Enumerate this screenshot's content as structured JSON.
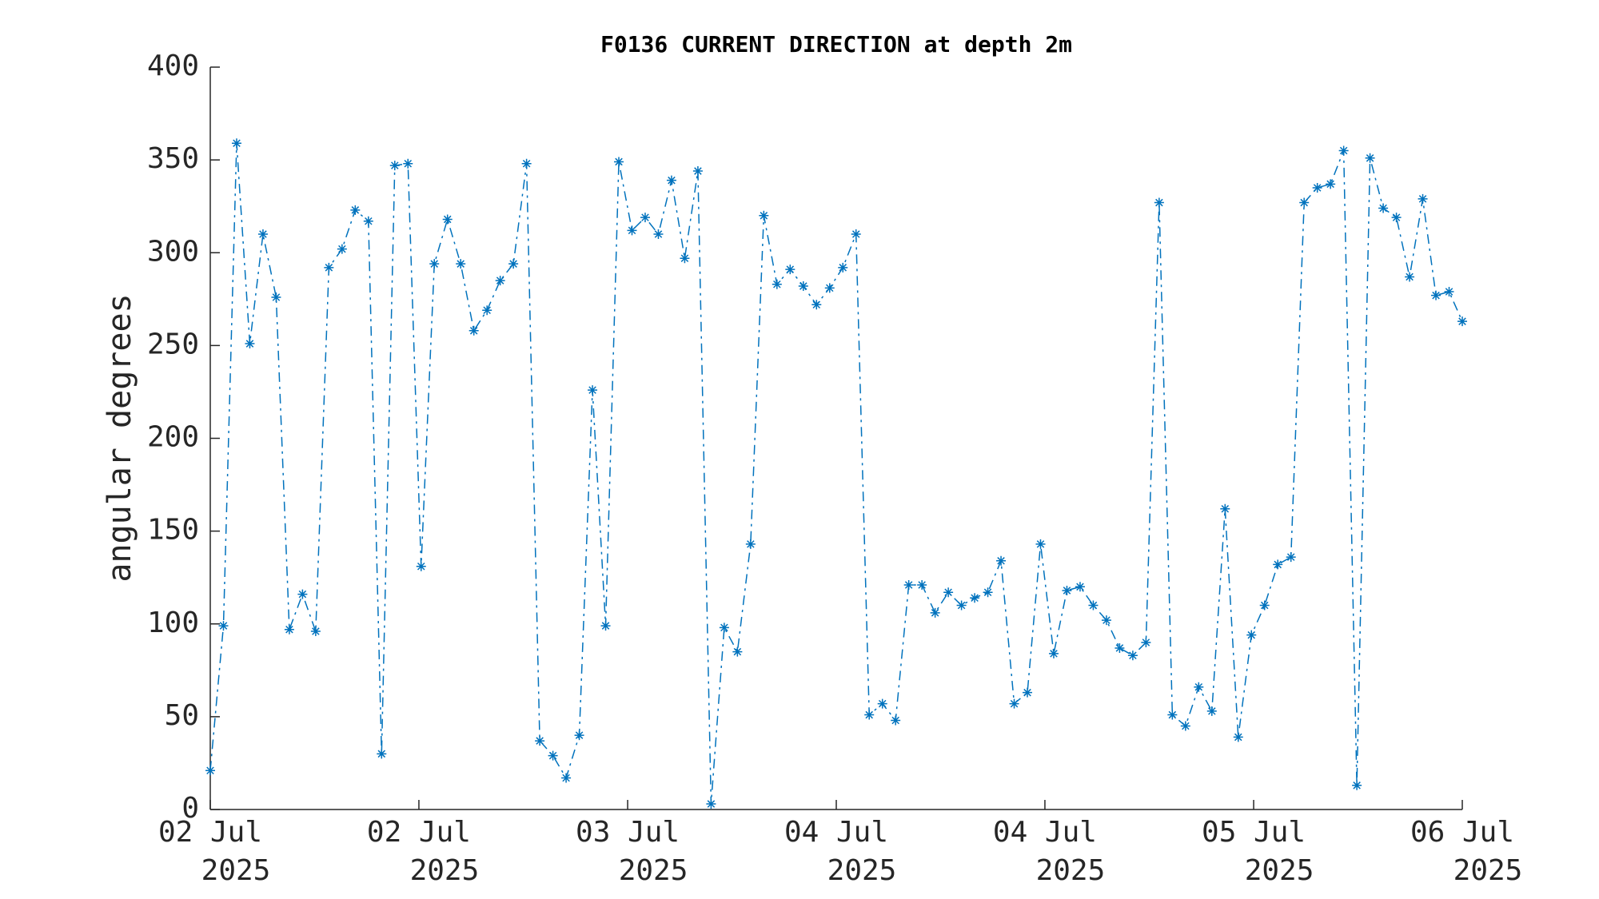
{
  "chart_data": {
    "type": "line",
    "title": "F0136 CURRENT DIRECTION at depth 2m",
    "ylabel": "angular degrees",
    "x": [
      0,
      1,
      2,
      3,
      4,
      5,
      6,
      7,
      8,
      9,
      10,
      11,
      12,
      13,
      14,
      15,
      16,
      17,
      18,
      19,
      20,
      21,
      22,
      23,
      24,
      25,
      26,
      27,
      28,
      29,
      30,
      31,
      32,
      33,
      34,
      35,
      36,
      37,
      38,
      39,
      40,
      41,
      42,
      43,
      44,
      45,
      46,
      47,
      48,
      49,
      50,
      51,
      52,
      53,
      54,
      55,
      56,
      57,
      58,
      59,
      60,
      61,
      62,
      63,
      64,
      65,
      66,
      67,
      68,
      69,
      70,
      71,
      72,
      73,
      74,
      75,
      76,
      77,
      78,
      79,
      80,
      81,
      82,
      83,
      84,
      85,
      86,
      87,
      88,
      89,
      90,
      91,
      92,
      93,
      94,
      95
    ],
    "series": [
      {
        "name": "current direction",
        "color": "#0072bd",
        "values": [
          21,
          99,
          359,
          251,
          310,
          276,
          97,
          116,
          96,
          292,
          302,
          323,
          317,
          30,
          347,
          348,
          131,
          294,
          318,
          294,
          258,
          269,
          285,
          294,
          348,
          37,
          29,
          17,
          40,
          226,
          99,
          349,
          312,
          319,
          310,
          339,
          297,
          344,
          3,
          98,
          85,
          143,
          320,
          283,
          291,
          282,
          272,
          281,
          292,
          310,
          51,
          57,
          48,
          121,
          121,
          106,
          117,
          110,
          114,
          117,
          134,
          57,
          63,
          143,
          84,
          118,
          120,
          110,
          102,
          87,
          83,
          90,
          327,
          51,
          45,
          66,
          53,
          162,
          39,
          94,
          110,
          132,
          136,
          327,
          335,
          337,
          355,
          13,
          351,
          324,
          319,
          287,
          329,
          277,
          279,
          263
        ]
      }
    ],
    "xlim": [
      0,
      95
    ],
    "xticks": [
      {
        "value": 0,
        "label": "02 Jul\n2025"
      },
      {
        "value": 15.83,
        "label": "02 Jul\n2025"
      },
      {
        "value": 31.67,
        "label": "03 Jul\n2025"
      },
      {
        "value": 47.5,
        "label": "04 Jul\n2025"
      },
      {
        "value": 63.33,
        "label": "04 Jul\n2025"
      },
      {
        "value": 79.17,
        "label": "05 Jul\n2025"
      },
      {
        "value": 95,
        "label": "06 Jul\n2025"
      }
    ],
    "ylim": [
      0,
      400
    ],
    "yticks": [
      0,
      50,
      100,
      150,
      200,
      250,
      300,
      350,
      400
    ],
    "grid": false
  }
}
